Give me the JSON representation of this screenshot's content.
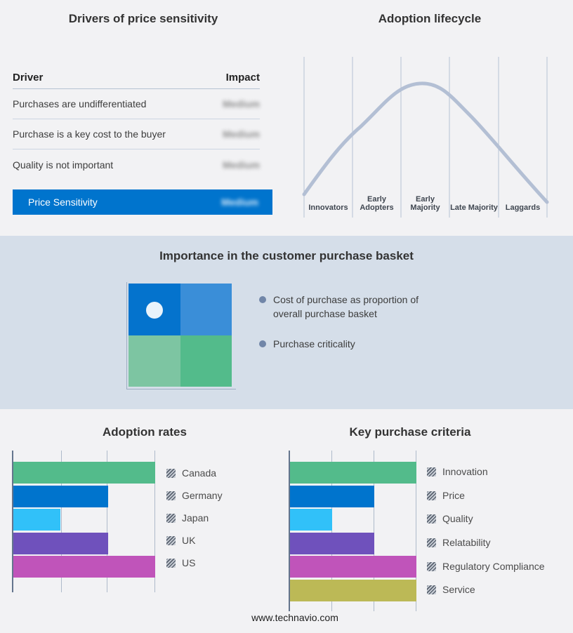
{
  "colors": {
    "page_bg": "#f2f2f4",
    "band_bg": "#d5dee9",
    "accent_blue": "#0074cd",
    "curve": "#b3bfd4",
    "bullet": "#7186a8",
    "quadrant_tl": "#0473cd",
    "quadrant_tr": "#3a8ed8",
    "quadrant_bl": "#7dc5a2",
    "quadrant_br": "#53bb8b"
  },
  "drivers": {
    "title": "Drivers of price sensitivity",
    "table": {
      "columns": {
        "driver": "Driver",
        "impact": "Impact"
      },
      "rows": [
        {
          "driver": "Purchases are undifferentiated",
          "impact": "Medium",
          "impact_blurred": true
        },
        {
          "driver": "Purchase is a key cost to the buyer",
          "impact": "Medium",
          "impact_blurred": true
        },
        {
          "driver": "Quality is not important",
          "impact": "Medium",
          "impact_blurred": true
        }
      ],
      "summary": {
        "label": "Price Sensitivity",
        "impact": "Medium",
        "impact_blurred": true
      }
    }
  },
  "basket": {
    "title": "Importance in the customer purchase basket",
    "bullets": [
      "Cost of purchase as proportion of overall purchase basket",
      "Purchase criticality"
    ]
  },
  "footer": "www.technavio.com",
  "chart_data": [
    {
      "name": "adoption_lifecycle",
      "type": "line",
      "title": "Adoption lifecycle",
      "categories": [
        "Innovators",
        "Early Adopters",
        "Early Majority",
        "Late Majority",
        "Laggards"
      ],
      "values_normalized": [
        0.32,
        0.76,
        1.0,
        0.68,
        0.24
      ],
      "shape": "bell curve peaking over Early Majority",
      "grid": "vertical stage separators",
      "ylabel": "",
      "xlabel": ""
    },
    {
      "name": "adoption_rates",
      "type": "bar",
      "orientation": "horizontal",
      "title": "Adoption rates",
      "categories": [
        "Canada",
        "Germany",
        "Japan",
        "UK",
        "US"
      ],
      "values": [
        3,
        2,
        1,
        2,
        3
      ],
      "xlim": [
        0,
        3
      ],
      "grid": true,
      "legend_position": "right",
      "colors": [
        "#53bb8b",
        "#0074cd",
        "#31c1f9",
        "#6f51bc",
        "#c054ba"
      ]
    },
    {
      "name": "key_purchase_criteria",
      "type": "bar",
      "orientation": "horizontal",
      "title": "Key purchase criteria",
      "categories": [
        "Innovation",
        "Price",
        "Quality",
        "Relatability",
        "Regulatory Compliance",
        "Service"
      ],
      "values": [
        3,
        2,
        1,
        2,
        3,
        3
      ],
      "xlim": [
        0,
        3
      ],
      "grid": true,
      "legend_position": "right",
      "colors": [
        "#53bb8b",
        "#0074cd",
        "#31c1f9",
        "#6f51bc",
        "#c054ba",
        "#bcb956"
      ]
    }
  ]
}
